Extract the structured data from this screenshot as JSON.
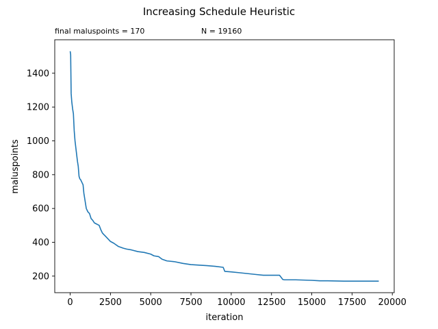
{
  "chart_data": {
    "type": "line",
    "title": "Increasing Schedule Heuristic",
    "annotations": {
      "final": "final maluspoints = 170",
      "n": "N = 19160"
    },
    "xlabel": "iteration",
    "ylabel": "maluspoints",
    "xlim": [
      -958,
      20118
    ],
    "ylim": [
      102,
      1598
    ],
    "xticks": [
      0,
      2500,
      5000,
      7500,
      10000,
      12500,
      15000,
      17500,
      20000
    ],
    "yticks": [
      200,
      400,
      600,
      800,
      1000,
      1200,
      1400
    ],
    "grid": false,
    "line_color": "#1f77b4",
    "series": [
      {
        "x": [
          0,
          30,
          60,
          100,
          150,
          200,
          250,
          300,
          350,
          400,
          450,
          500,
          550,
          600,
          650,
          700,
          750,
          800,
          850,
          900,
          950,
          1000,
          1050,
          1100,
          1150,
          1200,
          1300,
          1400,
          1500,
          1600,
          1700,
          1800,
          1900,
          2000,
          2100,
          2200,
          2300,
          2500,
          2700,
          3000,
          3300,
          3500,
          3800,
          4200,
          4600,
          5000,
          5200,
          5500,
          5700,
          6000,
          6500,
          7000,
          7500,
          8000,
          8500,
          9000,
          9500,
          9600,
          10000,
          10500,
          11000,
          11500,
          12000,
          12500,
          13000,
          13200,
          13300,
          14000,
          15000,
          15500,
          16000,
          17000,
          17500,
          18500,
          19160
        ],
        "y": [
          1530,
          1510,
          1280,
          1230,
          1190,
          1160,
          1060,
          1000,
          960,
          920,
          880,
          850,
          790,
          775,
          770,
          760,
          750,
          740,
          690,
          660,
          630,
          600,
          590,
          580,
          575,
          570,
          540,
          530,
          515,
          510,
          505,
          500,
          475,
          455,
          445,
          435,
          425,
          405,
          395,
          375,
          365,
          360,
          355,
          345,
          340,
          330,
          320,
          315,
          300,
          290,
          285,
          275,
          268,
          265,
          262,
          258,
          252,
          228,
          225,
          220,
          215,
          210,
          205,
          205,
          205,
          180,
          178,
          178,
          175,
          172,
          172,
          170,
          170,
          170,
          170
        ]
      }
    ]
  }
}
